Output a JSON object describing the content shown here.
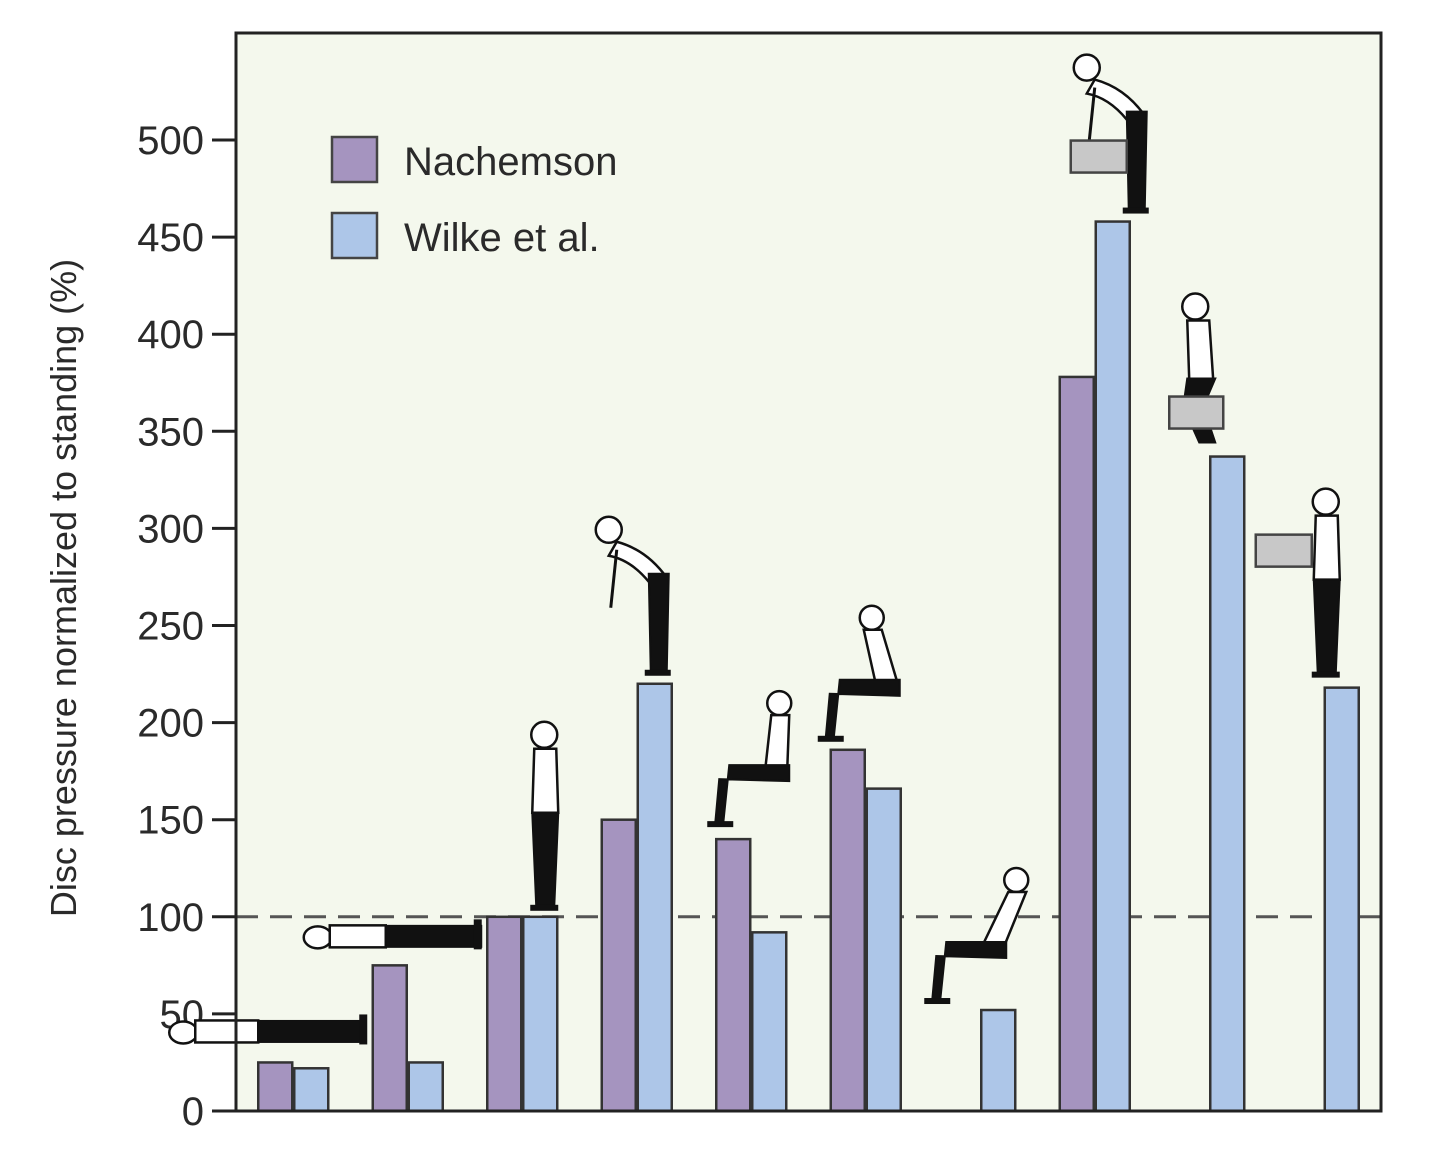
{
  "chart_data": {
    "type": "bar",
    "title": "",
    "xlabel": "",
    "ylabel": "Disc pressure normalized to standing (%)",
    "ylim": [
      0,
      550
    ],
    "yticks": [
      0,
      50,
      100,
      150,
      200,
      250,
      300,
      350,
      400,
      450,
      500
    ],
    "reference_line": {
      "value": 100,
      "style": "dashed"
    },
    "categories": [
      "lying supine",
      "lying on side",
      "standing relaxed",
      "standing bent forward",
      "sitting relaxed",
      "sitting bent forward",
      "sitting reclined",
      "lifting with bent back",
      "lifting with bent knees",
      "holding weight close to body"
    ],
    "series": [
      {
        "name": "Nachemson",
        "color": "#a594bf",
        "values": [
          25,
          75,
          100,
          150,
          140,
          186,
          null,
          378,
          null,
          null
        ]
      },
      {
        "name": "Wilke et al.",
        "color": "#adc6e8",
        "values": [
          22,
          25,
          100,
          220,
          92,
          166,
          52,
          458,
          337,
          218
        ]
      }
    ],
    "legend_position": "top-left",
    "plot_background": "#f4f8ed"
  }
}
